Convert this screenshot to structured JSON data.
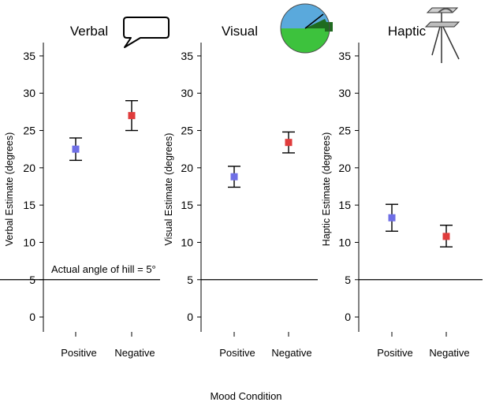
{
  "figure": {
    "shared_xlabel": "Mood Condition",
    "reference_note": "Actual angle of hill = 5°"
  },
  "colors": {
    "positive_marker": "#6f6fe6",
    "negative_marker": "#e03c3c",
    "axis": "#000000",
    "icon_sky": "#5aa9dc",
    "icon_ground": "#3dc23d",
    "icon_dark_green": "#1f6b1f"
  },
  "icons": [
    "speech-bubble-icon",
    "visual-matching-disk-icon",
    "haptic-palmboard-icon"
  ],
  "chart_data": [
    {
      "type": "scatter",
      "title": "Verbal",
      "ylabel": "Verbal Estimate (degrees)",
      "xlabel": "Mood Condition",
      "categories": [
        "Positive",
        "Negative"
      ],
      "values": [
        22.5,
        27.0
      ],
      "error_low": [
        21.0,
        25.0
      ],
      "error_high": [
        24.0,
        29.0
      ],
      "ylim": [
        -2,
        37
      ],
      "yticks": [
        0,
        5,
        10,
        15,
        20,
        25,
        30,
        35
      ],
      "reference_line": 5,
      "annotation": "Actual angle of hill = 5°"
    },
    {
      "type": "scatter",
      "title": "Visual",
      "ylabel": "Visual Estimate (degrees)",
      "xlabel": "Mood Condition",
      "categories": [
        "Positive",
        "Negative"
      ],
      "values": [
        18.8,
        23.4
      ],
      "error_low": [
        17.4,
        22.0
      ],
      "error_high": [
        20.2,
        24.8
      ],
      "ylim": [
        -2,
        37
      ],
      "yticks": [
        0,
        5,
        10,
        15,
        20,
        25,
        30,
        35
      ],
      "reference_line": 5
    },
    {
      "type": "scatter",
      "title": "Haptic",
      "ylabel": "Haptic Estimate (degrees)",
      "xlabel": "Mood Condition",
      "categories": [
        "Positive",
        "Negative"
      ],
      "values": [
        13.3,
        10.8
      ],
      "error_low": [
        11.5,
        9.4
      ],
      "error_high": [
        15.1,
        12.3
      ],
      "ylim": [
        -2,
        37
      ],
      "yticks": [
        0,
        5,
        10,
        15,
        20,
        25,
        30,
        35
      ],
      "reference_line": 5
    }
  ]
}
